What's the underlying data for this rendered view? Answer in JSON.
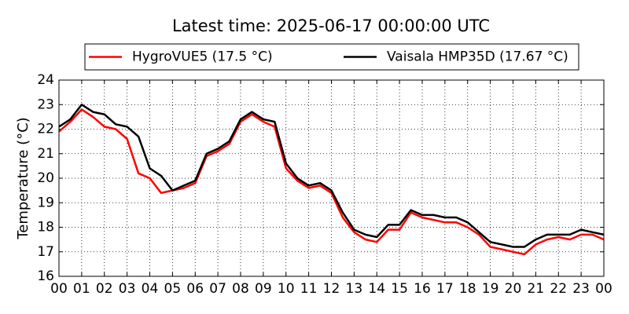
{
  "chart_data": {
    "type": "line",
    "title": "Latest time: 2025-06-17 00:00:00 UTC",
    "y_label": "Temperature (°C)",
    "x": [
      0,
      0.5,
      1,
      1.5,
      2,
      2.5,
      3,
      3.5,
      4,
      4.5,
      5,
      5.5,
      6,
      6.5,
      7,
      7.5,
      8,
      8.5,
      9,
      9.5,
      10,
      10.5,
      11,
      11.5,
      12,
      12.5,
      13,
      13.5,
      14,
      14.5,
      15,
      15.5,
      16,
      16.5,
      17,
      17.5,
      18,
      18.5,
      19,
      19.5,
      20,
      20.5,
      21,
      21.5,
      22,
      22.5,
      23,
      23.5,
      24
    ],
    "series": [
      {
        "name": "HygroVUE5 (17.5 °C)",
        "color": "#ff0000",
        "values": [
          21.9,
          22.3,
          22.8,
          22.5,
          22.1,
          22.0,
          21.6,
          20.2,
          20.0,
          19.4,
          19.5,
          19.6,
          19.8,
          20.9,
          21.1,
          21.4,
          22.3,
          22.6,
          22.3,
          22.1,
          20.4,
          19.9,
          19.6,
          19.7,
          19.4,
          18.4,
          17.8,
          17.5,
          17.4,
          17.9,
          17.9,
          18.6,
          18.4,
          18.3,
          18.2,
          18.2,
          18.0,
          17.7,
          17.2,
          17.1,
          17.0,
          16.9,
          17.3,
          17.5,
          17.6,
          17.5,
          17.7,
          17.7,
          17.5
        ]
      },
      {
        "name": "Vaisala HMP35D (17.67 °C)",
        "color": "#000000",
        "values": [
          22.1,
          22.4,
          23.0,
          22.7,
          22.6,
          22.2,
          22.1,
          21.7,
          20.4,
          20.1,
          19.5,
          19.7,
          19.9,
          21.0,
          21.2,
          21.5,
          22.4,
          22.7,
          22.4,
          22.3,
          20.6,
          20.0,
          19.7,
          19.8,
          19.5,
          18.6,
          17.9,
          17.7,
          17.6,
          18.1,
          18.1,
          18.7,
          18.5,
          18.5,
          18.4,
          18.4,
          18.2,
          17.8,
          17.4,
          17.3,
          17.2,
          17.2,
          17.5,
          17.7,
          17.7,
          17.7,
          17.9,
          17.8,
          17.7
        ]
      }
    ],
    "xlim": [
      0,
      24
    ],
    "xticks": [
      {
        "value": 0,
        "label": "00"
      },
      {
        "value": 1,
        "label": "01"
      },
      {
        "value": 2,
        "label": "02"
      },
      {
        "value": 3,
        "label": "03"
      },
      {
        "value": 4,
        "label": "04"
      },
      {
        "value": 5,
        "label": "05"
      },
      {
        "value": 6,
        "label": "06"
      },
      {
        "value": 7,
        "label": "07"
      },
      {
        "value": 8,
        "label": "08"
      },
      {
        "value": 9,
        "label": "09"
      },
      10,
      11,
      12,
      13,
      14,
      15,
      16,
      17,
      18,
      19,
      20,
      21,
      22,
      23,
      {
        "value": 24,
        "label": "00"
      }
    ],
    "ylim": [
      16,
      24
    ],
    "yticks": [
      16,
      17,
      18,
      19,
      20,
      21,
      22,
      23,
      24
    ],
    "grid": true,
    "legend": "upper center"
  }
}
